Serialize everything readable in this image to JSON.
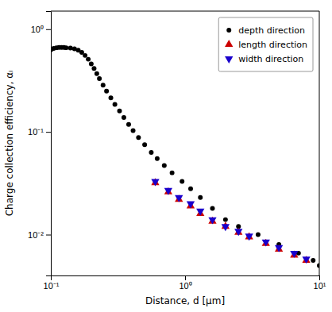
{
  "chart_data": {
    "type": "scatter",
    "xlabel": "Distance, d [μm]",
    "ylabel": "Charge collection efficiency, αᵢ",
    "log": true,
    "legend": "upper right",
    "grid": false,
    "xlim": [
      0.1,
      10
    ],
    "ylim": [
      0.004,
      1.5
    ],
    "xticks": [
      {
        "value": 0.1,
        "label": "10⁻¹"
      },
      {
        "value": 1,
        "label": "10⁰"
      },
      {
        "value": 10,
        "label": "10¹"
      }
    ],
    "yticks": [
      {
        "value": 0.01,
        "label": "10⁻²"
      },
      {
        "value": 0.1,
        "label": "10⁻¹"
      },
      {
        "value": 1,
        "label": "10⁰"
      }
    ],
    "series": [
      {
        "name": "depth direction",
        "color": "black",
        "marker": "circle",
        "x": [
          0.1,
          0.105,
          0.11,
          0.115,
          0.12,
          0.125,
          0.13,
          0.14,
          0.15,
          0.16,
          0.17,
          0.18,
          0.19,
          0.2,
          0.21,
          0.22,
          0.23,
          0.245,
          0.26,
          0.28,
          0.3,
          0.325,
          0.35,
          0.38,
          0.41,
          0.45,
          0.5,
          0.56,
          0.62,
          0.7,
          0.8,
          0.95,
          1.1,
          1.3,
          1.6,
          2.0,
          2.5,
          3.5,
          5.0,
          7.0,
          9.0,
          10.0
        ],
        "values": [
          0.63,
          0.65,
          0.66,
          0.665,
          0.665,
          0.665,
          0.66,
          0.655,
          0.645,
          0.625,
          0.595,
          0.555,
          0.51,
          0.46,
          0.415,
          0.37,
          0.33,
          0.285,
          0.25,
          0.215,
          0.185,
          0.16,
          0.138,
          0.118,
          0.103,
          0.088,
          0.075,
          0.063,
          0.055,
          0.047,
          0.04,
          0.033,
          0.028,
          0.023,
          0.018,
          0.014,
          0.012,
          0.01,
          0.008,
          0.0066,
          0.0056,
          0.005
        ]
      },
      {
        "name": "length direction",
        "color": "#cc0000",
        "marker": "triangle-up",
        "x": [
          0.6,
          0.75,
          0.9,
          1.1,
          1.3,
          1.6,
          2.0,
          2.5,
          3.0,
          4.0,
          5.0,
          6.5,
          8.0
        ],
        "values": [
          0.032,
          0.026,
          0.022,
          0.019,
          0.016,
          0.0135,
          0.012,
          0.0105,
          0.0095,
          0.0082,
          0.0072,
          0.0063,
          0.0056
        ]
      },
      {
        "name": "width direction",
        "color": "#1a00cc",
        "marker": "triangle-down",
        "x": [
          0.6,
          0.75,
          0.9,
          1.1,
          1.3,
          1.6,
          2.0,
          2.5,
          3.0,
          4.0,
          5.0,
          6.5,
          8.0
        ],
        "values": [
          0.033,
          0.027,
          0.023,
          0.02,
          0.017,
          0.014,
          0.012,
          0.0108,
          0.0097,
          0.0085,
          0.0075,
          0.0066,
          0.0058
        ]
      }
    ]
  }
}
